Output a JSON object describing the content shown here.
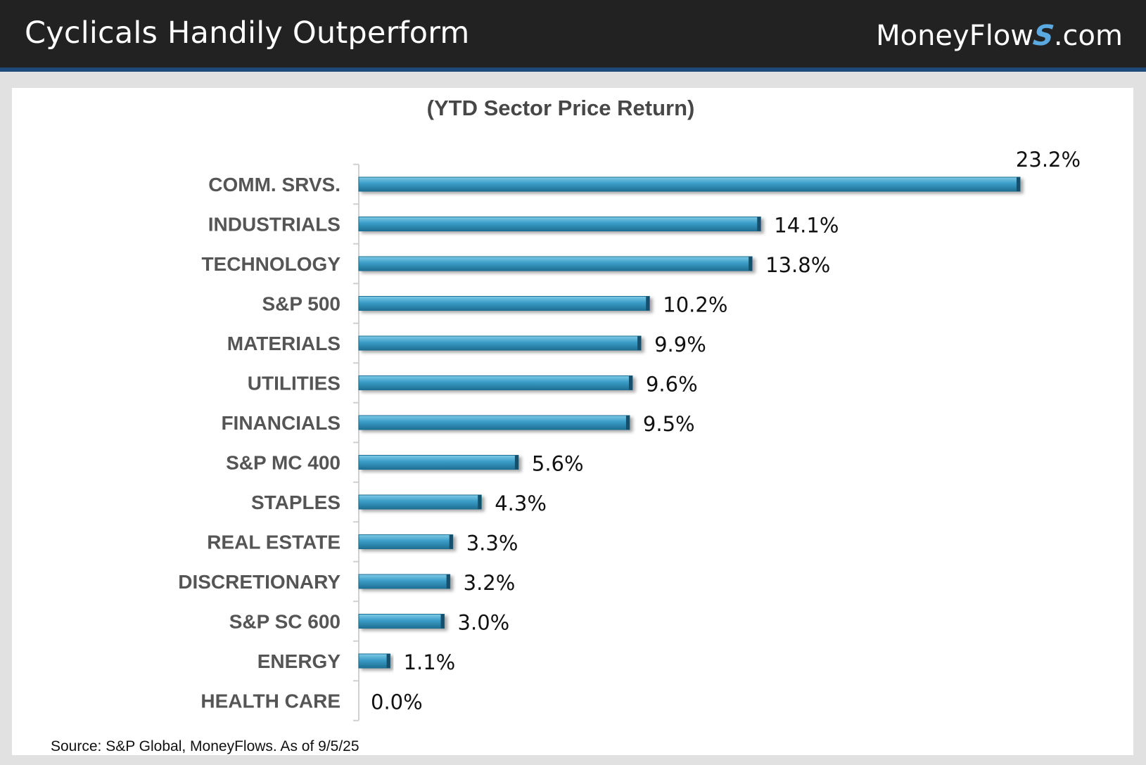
{
  "header": {
    "title": "Cyclicals Handily Outperform",
    "brand_prefix": "MoneyFlow",
    "brand_s": "S",
    "brand_suffix": ".com"
  },
  "colors": {
    "bar": "#3a9cc7",
    "bar_highlight": "#7fcbe8",
    "bar_shadow": "#1f6f93",
    "label": "#555555",
    "value": "#111111",
    "header_bg": "#222222",
    "header_accent": "#1d4a78"
  },
  "chart_data": {
    "type": "bar",
    "orientation": "horizontal",
    "title": "(YTD Sector Price Return)",
    "categories": [
      "COMM. SRVS.",
      "INDUSTRIALS",
      "TECHNOLOGY",
      "S&P 500",
      "MATERIALS",
      "UTILITIES",
      "FINANCIALS",
      "S&P MC 400",
      "STAPLES",
      "REAL ESTATE",
      "DISCRETIONARY",
      "S&P SC 600",
      "ENERGY",
      "HEALTH CARE"
    ],
    "values": [
      23.2,
      14.1,
      13.8,
      10.2,
      9.9,
      9.6,
      9.5,
      5.6,
      4.3,
      3.3,
      3.2,
      3.0,
      1.1,
      0.0
    ],
    "value_labels": [
      "23.2%",
      "14.1%",
      "13.8%",
      "10.2%",
      "9.9%",
      "9.6%",
      "9.5%",
      "5.6%",
      "4.3%",
      "3.3%",
      "3.2%",
      "3.0%",
      "1.1%",
      "0.0%"
    ],
    "xlim": [
      0,
      23.2
    ],
    "grid": false,
    "legend": "none"
  },
  "footer": {
    "source": "Source: S&P Global, MoneyFlows. As of  9/5/25"
  }
}
